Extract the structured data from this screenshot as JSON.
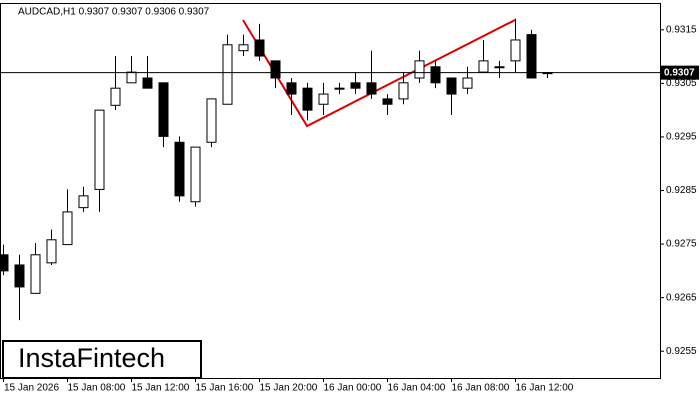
{
  "chart_data": {
    "type": "candlestick",
    "title": "AUDCAD,H1  0.9307 0.9307 0.9306 0.9307",
    "categories": [
      "15 Jan 2026",
      null,
      null,
      null,
      "15 Jan 08:00",
      null,
      null,
      null,
      "15 Jan 12:00",
      null,
      null,
      null,
      "15 Jan 16:00",
      null,
      null,
      null,
      "15 Jan 20:00",
      null,
      null,
      null,
      "16 Jan 00:00",
      null,
      null,
      null,
      "16 Jan 04:00",
      null,
      null,
      null,
      "16 Jan 08:00",
      null,
      null,
      null,
      "16 Jan 12:00",
      null,
      null
    ],
    "open": [
      0.9273,
      0.92711,
      0.92658,
      0.92715,
      0.92749,
      0.92818,
      0.92852,
      0.93009,
      0.93051,
      0.9306,
      0.93051,
      0.9294,
      0.92829,
      0.9294,
      0.93011,
      0.93111,
      0.93131,
      0.93092,
      0.93051,
      0.93041,
      0.93011,
      0.9304,
      0.93051,
      0.93051,
      0.93021,
      0.93021,
      0.9306,
      0.93081,
      0.9306,
      0.93041,
      0.93071,
      0.93081,
      0.93092,
      0.93141,
      0.9307
    ],
    "high": [
      0.92749,
      0.9273,
      0.92752,
      0.92777,
      0.92852,
      0.92857,
      0.93,
      0.93101,
      0.93101,
      0.93101,
      0.93051,
      0.92951,
      0.92931,
      0.93021,
      0.93141,
      0.93141,
      0.93161,
      0.93092,
      0.9306,
      0.93051,
      0.93051,
      0.93051,
      0.93071,
      0.93111,
      0.9303,
      0.93071,
      0.93111,
      0.93092,
      0.9306,
      0.93081,
      0.93131,
      0.93092,
      0.93171,
      0.9315,
      0.9307
    ],
    "low": [
      0.92692,
      0.92608,
      0.92658,
      0.92711,
      0.92749,
      0.9281,
      0.9281,
      0.93,
      0.93051,
      0.93041,
      0.92931,
      0.92829,
      0.9282,
      0.92931,
      0.93011,
      0.93101,
      0.93092,
      0.93041,
      0.92991,
      0.92981,
      0.92991,
      0.9303,
      0.9303,
      0.93021,
      0.92991,
      0.93011,
      0.93051,
      0.93041,
      0.92991,
      0.9303,
      0.93071,
      0.9306,
      0.93071,
      0.9306,
      0.9306
    ],
    "close": [
      0.927,
      0.9267,
      0.9273,
      0.92758,
      0.9281,
      0.9284,
      0.93,
      0.93041,
      0.93071,
      0.93041,
      0.92951,
      0.9284,
      0.92931,
      0.93021,
      0.93122,
      0.93122,
      0.93101,
      0.9306,
      0.9303,
      0.93,
      0.9303,
      0.93041,
      0.93041,
      0.9303,
      0.93011,
      0.93051,
      0.93092,
      0.93051,
      0.9303,
      0.9306,
      0.93092,
      0.93081,
      0.93131,
      0.9306,
      0.9307
    ],
    "up_color": "#ffffff",
    "down_color": "#000000",
    "ylim": [
      0.925,
      0.932
    ],
    "yticks": [
      0.9255,
      0.9265,
      0.9275,
      0.9285,
      0.9295,
      0.9305,
      0.9315
    ],
    "last_price": 0.9307,
    "pattern_color": "#e00000",
    "watermark": "InstaFintech"
  }
}
